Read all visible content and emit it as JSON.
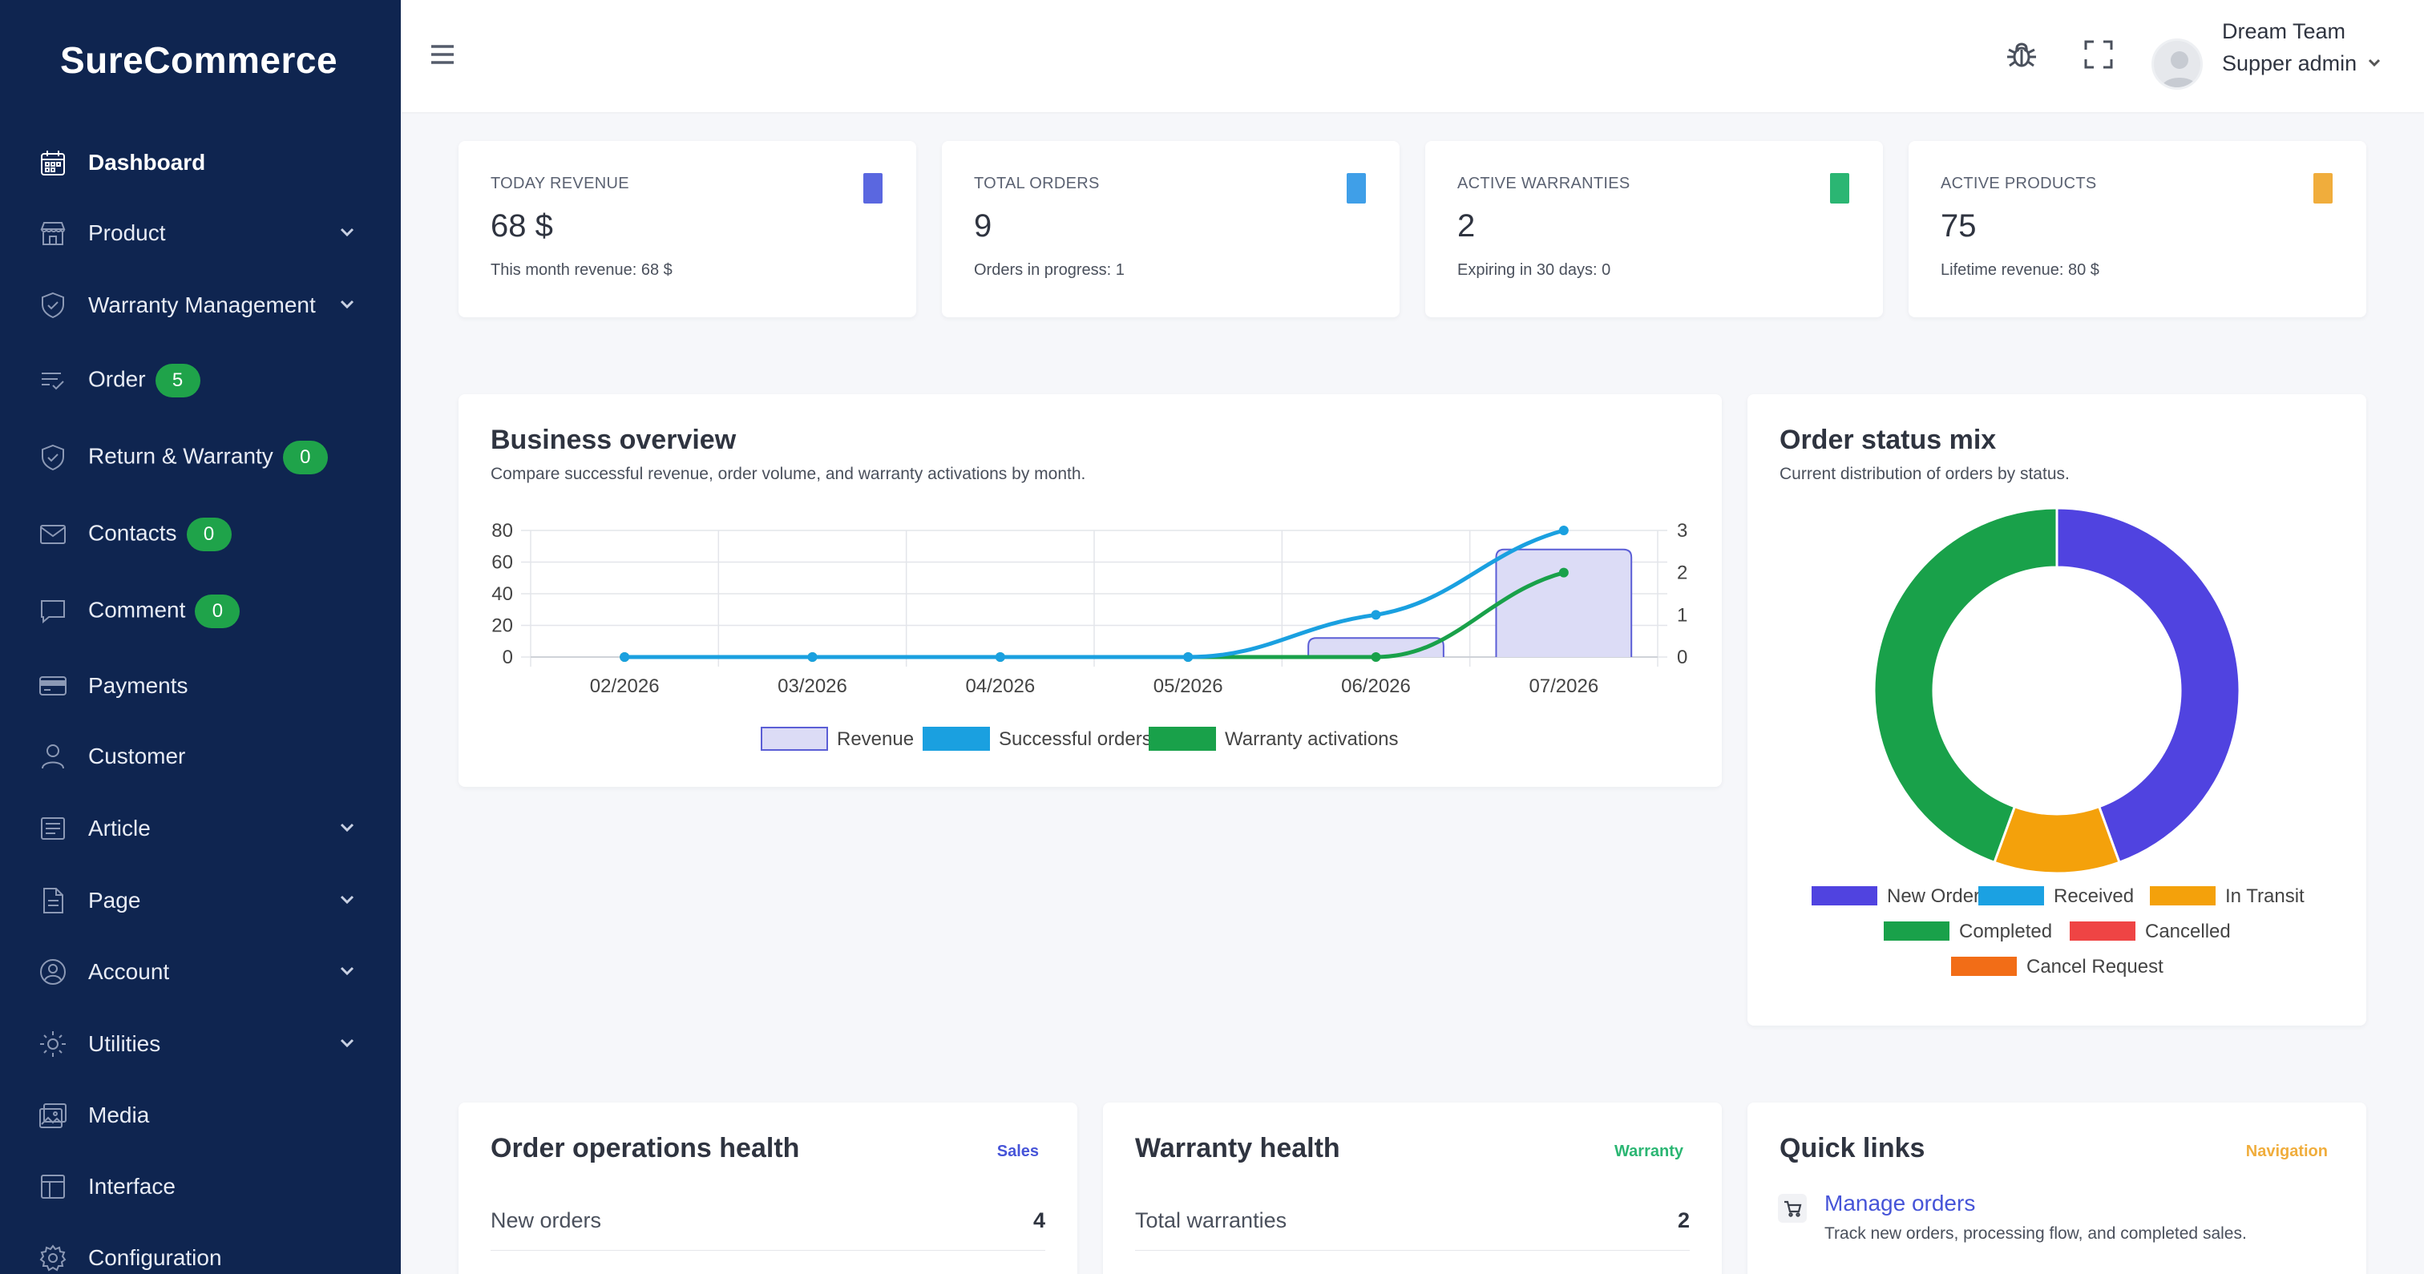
{
  "app": {
    "brand": "SureCommerce"
  },
  "sidebar": {
    "items": [
      {
        "label": "Dashboard",
        "icon": "calendar-icon",
        "active": true,
        "has_chevron": false,
        "badge": null
      },
      {
        "label": "Product",
        "icon": "store-icon",
        "active": false,
        "has_chevron": true,
        "badge": null
      },
      {
        "label": "Warranty Management",
        "icon": "shield-icon",
        "active": false,
        "has_chevron": true,
        "badge": null
      },
      {
        "label": "Order",
        "icon": "list-check-icon",
        "active": false,
        "has_chevron": false,
        "badge": "5"
      },
      {
        "label": "Return & Warranty",
        "icon": "shield-check-icon",
        "active": false,
        "has_chevron": false,
        "badge": "0"
      },
      {
        "label": "Contacts",
        "icon": "mail-icon",
        "active": false,
        "has_chevron": false,
        "badge": "0"
      },
      {
        "label": "Comment",
        "icon": "comment-icon",
        "active": false,
        "has_chevron": false,
        "badge": "0"
      },
      {
        "label": "Payments",
        "icon": "credit-card-icon",
        "active": false,
        "has_chevron": false,
        "badge": null
      },
      {
        "label": "Customer",
        "icon": "user-icon",
        "active": false,
        "has_chevron": false,
        "badge": null
      },
      {
        "label": "Article",
        "icon": "article-icon",
        "active": false,
        "has_chevron": true,
        "badge": null
      },
      {
        "label": "Page",
        "icon": "document-icon",
        "active": false,
        "has_chevron": true,
        "badge": null
      },
      {
        "label": "Account",
        "icon": "user-circle-icon",
        "active": false,
        "has_chevron": true,
        "badge": null
      },
      {
        "label": "Utilities",
        "icon": "sun-icon",
        "active": false,
        "has_chevron": true,
        "badge": null
      },
      {
        "label": "Media",
        "icon": "media-icon",
        "active": false,
        "has_chevron": false,
        "badge": null
      },
      {
        "label": "Interface",
        "icon": "layout-icon",
        "active": false,
        "has_chevron": false,
        "badge": null
      },
      {
        "label": "Configuration",
        "icon": "gear-icon",
        "active": false,
        "has_chevron": false,
        "badge": null
      }
    ]
  },
  "topbar": {
    "user_name": "Dream Team",
    "user_role": "Supper admin",
    "icons": [
      "menu-icon",
      "bug-icon",
      "fullscreen-icon",
      "avatar-icon",
      "chevron-down-icon"
    ]
  },
  "stats": [
    {
      "title": "TODAY REVENUE",
      "value": "68 $",
      "sub": "This month revenue: 68 $",
      "color": "#5a67e0"
    },
    {
      "title": "TOTAL ORDERS",
      "value": "9",
      "sub": "Orders in progress: 1",
      "color": "#3f9fe8"
    },
    {
      "title": "ACTIVE WARRANTIES",
      "value": "2",
      "sub": "Expiring in 30 days: 0",
      "color": "#2bb673"
    },
    {
      "title": "ACTIVE PRODUCTS",
      "value": "75",
      "sub": "Lifetime revenue: 80 $",
      "color": "#f0ad3c"
    }
  ],
  "business_overview": {
    "title": "Business overview",
    "subtitle": "Compare successful revenue, order volume, and warranty activations by month."
  },
  "order_status": {
    "title": "Order status mix",
    "subtitle": "Current distribution of orders by status."
  },
  "chart_data": [
    {
      "type": "bar",
      "categories": [
        "02/2026",
        "03/2026",
        "04/2026",
        "05/2026",
        "06/2026",
        "07/2026"
      ],
      "series": [
        {
          "name": "Revenue",
          "kind": "bar",
          "axis": "left",
          "values": [
            0,
            0,
            0,
            0,
            12,
            68
          ],
          "color": "#5b5ed6",
          "fill": "#dcdcf6"
        },
        {
          "name": "Successful orders",
          "kind": "line",
          "axis": "right",
          "values": [
            0,
            0,
            0,
            0,
            1,
            3
          ],
          "color": "#1aa0e0"
        },
        {
          "name": "Warranty activations",
          "kind": "line",
          "axis": "right",
          "values": [
            0,
            0,
            0,
            0,
            0,
            2
          ],
          "color": "#19a14a"
        }
      ],
      "left_axis": {
        "ylim": [
          0,
          80
        ],
        "ticks": [
          "0",
          "20",
          "40",
          "60",
          "80"
        ]
      },
      "right_axis": {
        "ylim": [
          0,
          3
        ],
        "ticks": [
          "0",
          "1",
          "2",
          "3"
        ]
      },
      "grid": true,
      "legend": "bottom"
    },
    {
      "type": "pie",
      "donut": true,
      "labels": [
        "New Order",
        "Received",
        "In Transit",
        "Completed",
        "Cancelled",
        "Cancel Request"
      ],
      "values": [
        4,
        0,
        1,
        4,
        0,
        0
      ],
      "colors": [
        "#5043e0",
        "#1ba1e2",
        "#f4a10b",
        "#19a14a",
        "#ef4444",
        "#f26d17"
      ],
      "legend": "bottom"
    }
  ],
  "order_ops": {
    "title": "Order operations health",
    "tag": "Sales",
    "tag_color": "#4654d8",
    "rows": [
      {
        "label": "New orders",
        "value": "4"
      }
    ]
  },
  "warranty_health": {
    "title": "Warranty health",
    "tag": "Warranty",
    "tag_color": "#2bb673",
    "rows": [
      {
        "label": "Total warranties",
        "value": "2"
      }
    ]
  },
  "quick_links": {
    "title": "Quick links",
    "tag": "Navigation",
    "tag_color": "#f0ad3c",
    "links": [
      {
        "label": "Manage orders",
        "desc": "Track new orders, processing flow, and completed sales.",
        "icon": "cart-icon"
      }
    ]
  }
}
